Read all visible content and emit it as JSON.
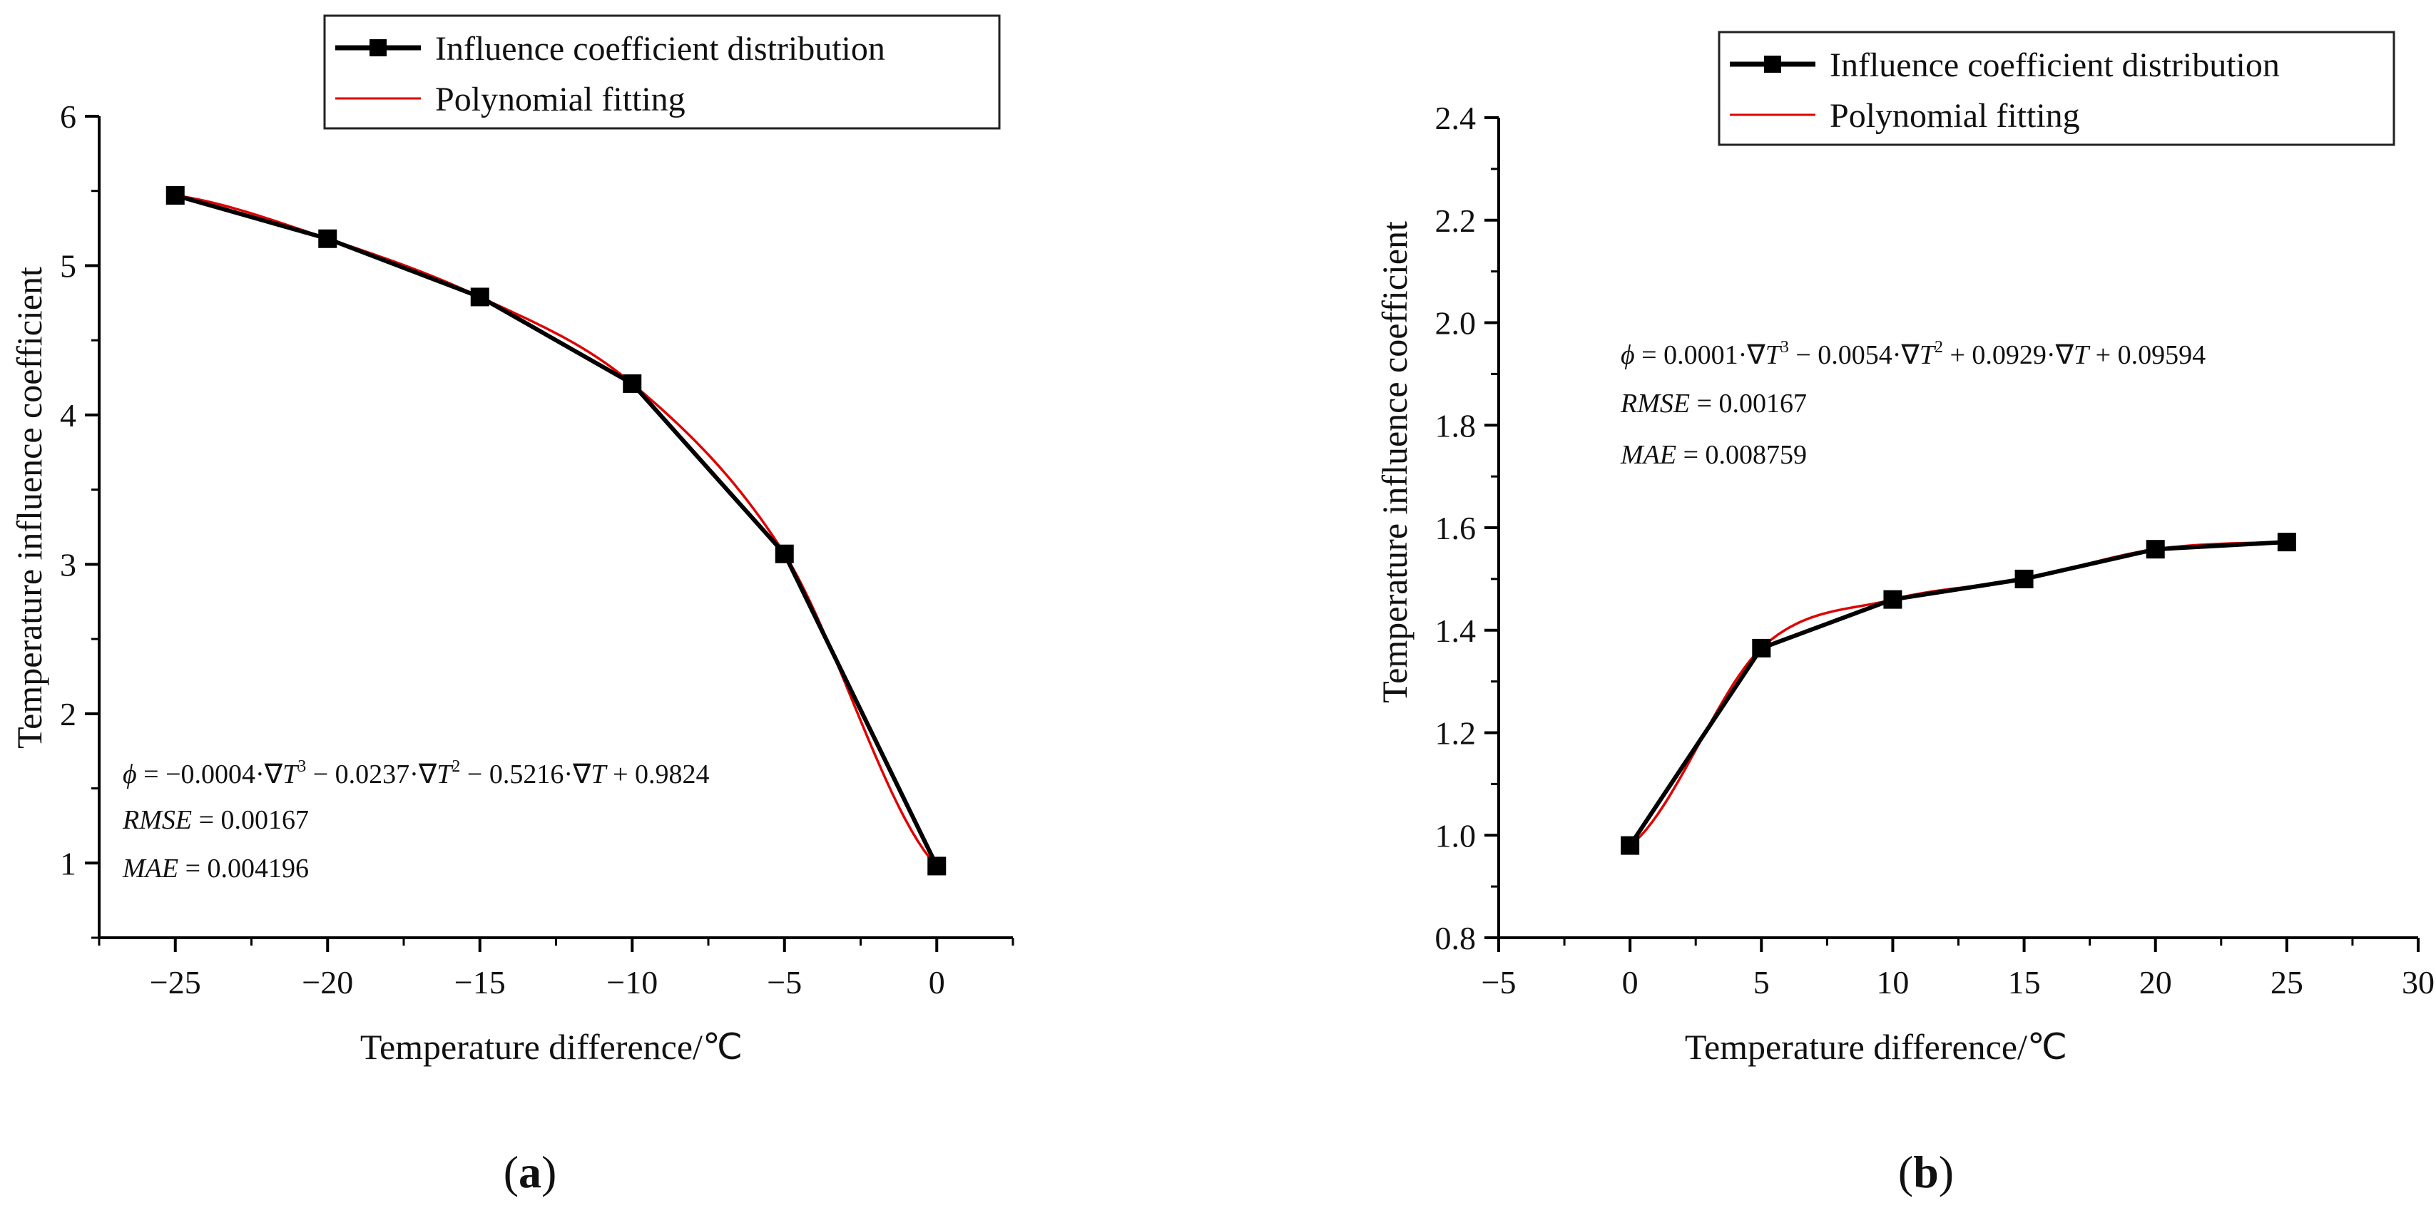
{
  "chart_data": [
    {
      "type": "line",
      "panel_label": "a",
      "xlabel": "Temperature difference/℃",
      "ylabel": "Temperature influence coefficient",
      "xlim": [
        -27.5,
        2.5
      ],
      "ylim": [
        0.5,
        6
      ],
      "x_ticks": [
        -25,
        -20,
        -15,
        -10,
        -5,
        0
      ],
      "y_ticks": [
        1,
        2,
        3,
        4,
        5,
        6
      ],
      "grid": false,
      "legend_position": "top-right",
      "series": [
        {
          "name": "Influence coefficient distribution",
          "style": "line-with-square-markers",
          "color": "#000000",
          "x": [
            -25,
            -20,
            -15,
            -10,
            -5,
            0
          ],
          "y": [
            5.47,
            5.18,
            4.79,
            4.21,
            3.07,
            0.98
          ]
        },
        {
          "name": "Polynomial fitting",
          "style": "smooth-line",
          "color": "#e00000",
          "coefficients": [
            -0.0004,
            -0.0237,
            -0.5216,
            0.9824
          ],
          "x_range": [
            -25,
            0
          ]
        }
      ],
      "annotations": {
        "equation": {
          "phi": "ϕ",
          "lhs": " = −0.0004·∇",
          "t1": "T",
          "p1": "3",
          "m2": " − 0.0237·∇",
          "t2": "T",
          "p2": "2",
          "m3": " − 0.5216·∇",
          "t3": "T",
          "m4": " + 0.9824"
        },
        "rmse": {
          "label": "RMSE",
          "value": " = 0.00167"
        },
        "mae": {
          "label": "MAE",
          "value": " = 0.004196"
        }
      }
    },
    {
      "type": "line",
      "panel_label": "b",
      "xlabel": "Temperature difference/℃",
      "ylabel": "Temperature influence coefficient",
      "xlim": [
        -5,
        30
      ],
      "ylim": [
        0.8,
        2.4
      ],
      "x_ticks": [
        -5,
        0,
        5,
        10,
        15,
        20,
        25,
        30
      ],
      "y_ticks": [
        0.8,
        1.0,
        1.2,
        1.4,
        1.6,
        1.8,
        2.0,
        2.2,
        2.4
      ],
      "y_tick_labels": [
        "0.8",
        "1.0",
        "1.2",
        "1.4",
        "1.6",
        "1.8",
        "2.0",
        "2.2",
        "2.4"
      ],
      "grid": false,
      "legend_position": "top-right",
      "series": [
        {
          "name": "Influence coefficient distribution",
          "style": "line-with-square-markers",
          "color": "#000000",
          "x": [
            0,
            5,
            10,
            15,
            20,
            25
          ],
          "y": [
            0.98,
            1.365,
            1.46,
            1.5,
            1.558,
            1.572
          ]
        },
        {
          "name": "Polynomial fitting",
          "style": "smooth-line",
          "color": "#e00000",
          "coefficients": [
            0.0001,
            -0.0054,
            0.0929,
            0.09594
          ],
          "x_range": [
            0,
            25
          ]
        }
      ],
      "annotations": {
        "equation": {
          "phi": "ϕ",
          "lhs": " = 0.0001·∇",
          "t1": "T",
          "p1": "3",
          "m2": " − 0.0054·∇",
          "t2": "T",
          "p2": "2",
          "m3": " + 0.0929·∇",
          "t3": "T",
          "m4": " + 0.09594"
        },
        "rmse": {
          "label": "RMSE",
          "value": " = 0.00167"
        },
        "mae": {
          "label": "MAE",
          "value": " = 0.008759"
        }
      }
    }
  ]
}
